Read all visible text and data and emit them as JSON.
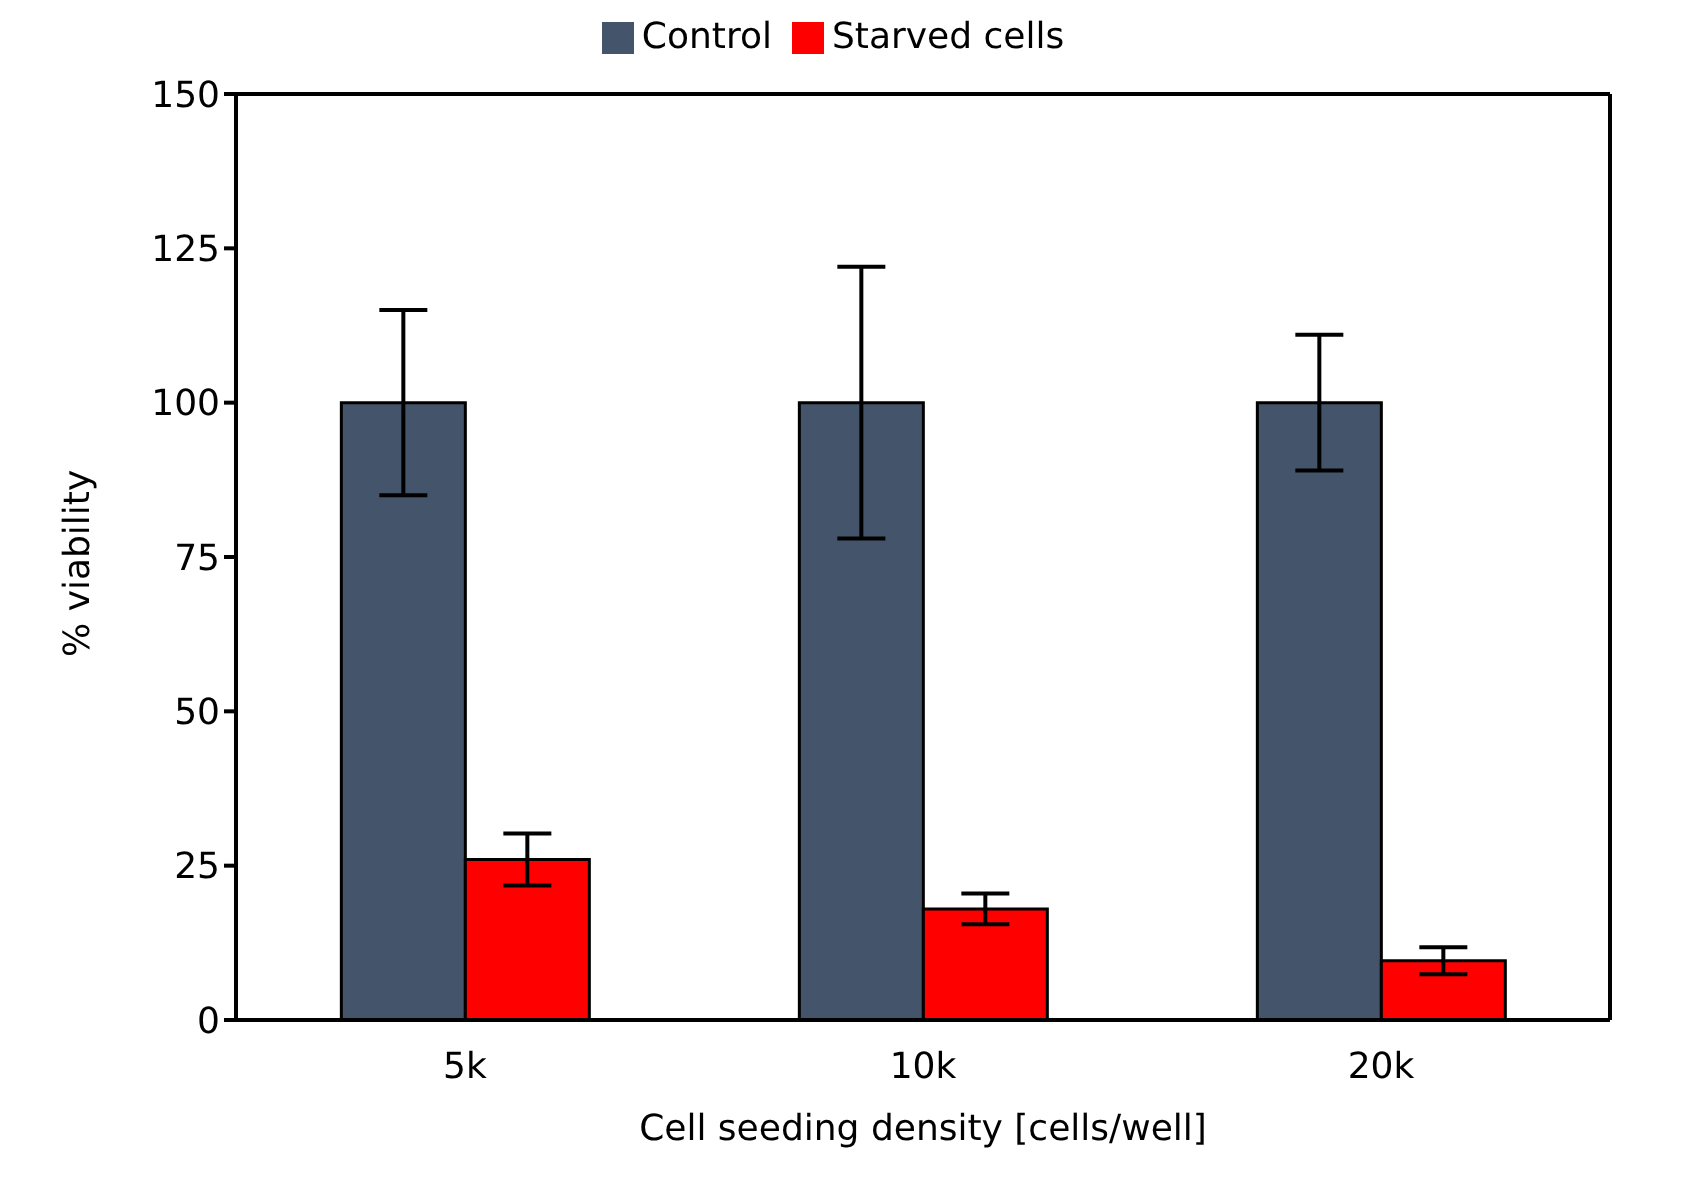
{
  "chart_data": {
    "type": "bar",
    "xlabel": "Cell seeding density [cells/well]",
    "ylabel": "% viability",
    "categories": [
      "5k",
      "10k",
      "20k"
    ],
    "series": [
      {
        "name": "Control",
        "color": "#44546a",
        "values": [
          100,
          100,
          100
        ],
        "errors": [
          15,
          22,
          11
        ]
      },
      {
        "name": "Starved cells",
        "color": "#ff0000",
        "values": [
          26,
          18,
          9.6
        ],
        "errors": [
          4.2,
          2.5,
          2.2
        ]
      }
    ],
    "ylim": [
      0,
      150
    ],
    "yticks": [
      0,
      25,
      50,
      75,
      100,
      125,
      150
    ],
    "legend": "top"
  }
}
